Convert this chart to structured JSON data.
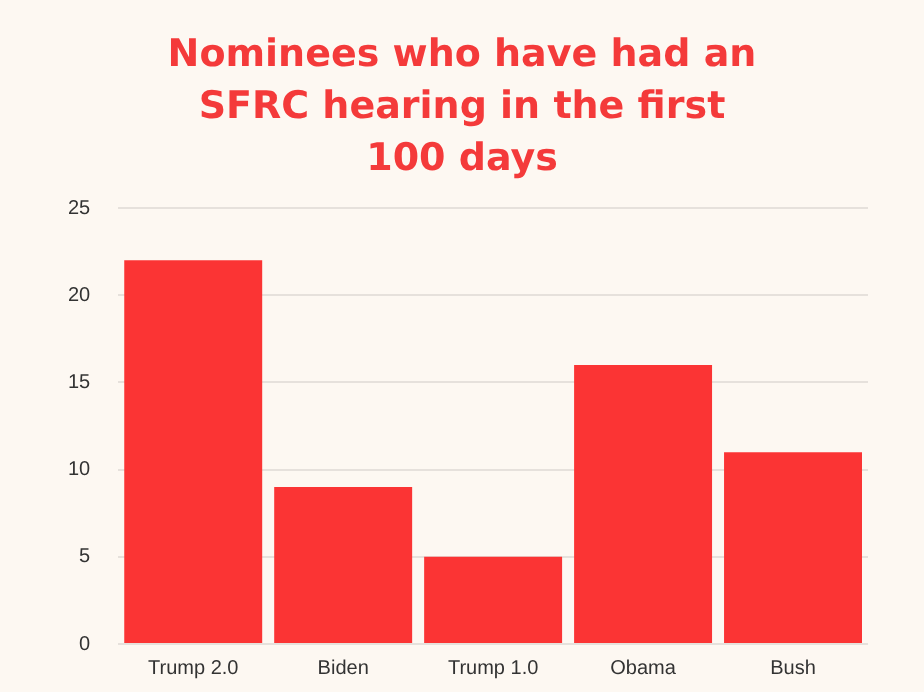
{
  "chart_data": {
    "type": "bar",
    "title": "Nominees who have had an SFRC hearing in the first 100 days",
    "categories": [
      "Trump 2.0",
      "Biden",
      "Trump 1.0",
      "Obama",
      "Bush"
    ],
    "values": [
      22,
      9,
      5,
      16,
      11
    ],
    "color": "#fb3434",
    "ylim": [
      0,
      25
    ],
    "yticks": [
      0,
      5,
      10,
      15,
      20,
      25
    ],
    "grid": "y",
    "legend": false
  }
}
